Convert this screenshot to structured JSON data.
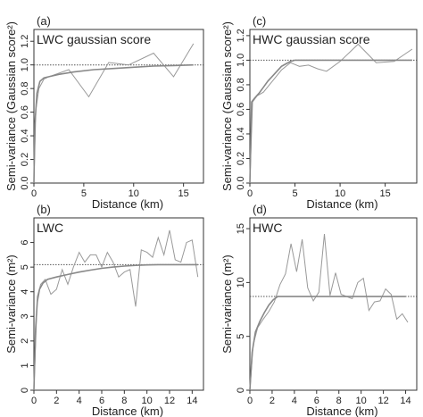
{
  "chart_data": [
    {
      "id": "a",
      "type": "line",
      "panel_label": "(a)",
      "title": "LWC gaussian score",
      "xlabel": "Distance (km)",
      "ylabel": "Semi-variance (Gaussian score²)",
      "xlim": [
        0,
        17
      ],
      "ylim": [
        0,
        1.3
      ],
      "xticks": [
        0,
        5,
        10,
        15
      ],
      "yticks": [
        0.0,
        0.2,
        0.4,
        0.6,
        0.8,
        1.0,
        1.2
      ],
      "ytick_labels": [
        "0.0",
        "0.2",
        "0.4",
        "0.6",
        "0.8",
        "1.0",
        "1.2"
      ],
      "sill": 1.0,
      "series": [
        {
          "kind": "empirical",
          "x": [
            0,
            0.2,
            0.5,
            1.0,
            1.5,
            3.5,
            5.5,
            7.5,
            9.5,
            12,
            14,
            16
          ],
          "y": [
            0,
            0.62,
            0.8,
            0.88,
            0.9,
            0.96,
            0.73,
            1.02,
            1.0,
            1.1,
            0.9,
            1.18
          ]
        },
        {
          "kind": "model",
          "x": [
            0,
            0.1,
            0.3,
            0.6,
            1.0,
            1.5,
            2.5,
            4,
            6,
            8,
            10,
            12,
            14,
            16
          ],
          "y": [
            0,
            0.5,
            0.76,
            0.86,
            0.89,
            0.9,
            0.92,
            0.94,
            0.96,
            0.97,
            0.98,
            0.99,
            0.995,
            1.0
          ]
        }
      ]
    },
    {
      "id": "b",
      "type": "line",
      "panel_label": "(b)",
      "title": "LWC",
      "xlabel": "Distance (km)",
      "ylabel": "Semi-variance (m²)",
      "xlim": [
        0,
        15
      ],
      "ylim": [
        0,
        7
      ],
      "xticks": [
        0,
        2,
        4,
        6,
        8,
        10,
        12,
        14
      ],
      "yticks": [
        0,
        1,
        2,
        3,
        4,
        5,
        6
      ],
      "ytick_labels": [
        "0",
        "1",
        "2",
        "3",
        "4",
        "5",
        "6"
      ],
      "sill": 5.1,
      "series": [
        {
          "kind": "empirical",
          "x": [
            0,
            0.3,
            0.6,
            1.0,
            1.5,
            2.0,
            2.5,
            3.0,
            3.5,
            4.0,
            4.5,
            5.0,
            5.5,
            6.0,
            6.5,
            7.0,
            7.5,
            8.0,
            8.5,
            9.0,
            9.5,
            10.0,
            10.5,
            11.0,
            11.5,
            12.0,
            12.5,
            13.0,
            13.5,
            14.0,
            14.5
          ],
          "y": [
            0,
            3.8,
            4.3,
            4.5,
            3.9,
            4.1,
            4.9,
            4.3,
            5.0,
            5.6,
            5.2,
            5.5,
            5.5,
            5.0,
            5.6,
            5.2,
            4.6,
            4.8,
            4.9,
            3.4,
            5.7,
            5.6,
            5.4,
            6.2,
            5.5,
            6.5,
            5.3,
            5.2,
            6.0,
            6.1,
            4.6
          ]
        },
        {
          "kind": "model",
          "x": [
            0,
            0.15,
            0.3,
            0.5,
            0.8,
            1.2,
            2,
            3,
            4,
            5,
            6,
            7,
            8,
            9,
            10,
            11,
            12,
            13,
            14,
            14.5
          ],
          "y": [
            0,
            2.5,
            3.6,
            4.1,
            4.35,
            4.5,
            4.6,
            4.7,
            4.8,
            4.88,
            4.95,
            5.0,
            5.04,
            5.07,
            5.09,
            5.1,
            5.1,
            5.1,
            5.1,
            5.1
          ]
        }
      ]
    },
    {
      "id": "c",
      "type": "line",
      "panel_label": "(c)",
      "title": "HWC gaussian score",
      "xlabel": "Distance (km)",
      "ylabel": "Semi-variance (Gaussian score²)",
      "xlim": [
        0,
        18.5
      ],
      "ylim": [
        0,
        1.25
      ],
      "xticks": [
        0,
        5,
        10,
        15
      ],
      "yticks": [
        0.0,
        0.2,
        0.4,
        0.6,
        0.8,
        1.0,
        1.2
      ],
      "ytick_labels": [
        "0.0",
        "0.2",
        "0.4",
        "0.6",
        "0.8",
        "1.0",
        "1.2"
      ],
      "sill": 1.0,
      "series": [
        {
          "kind": "empirical",
          "x": [
            0,
            0.3,
            0.8,
            1.5,
            2.5,
            3.5,
            4.5,
            5.5,
            6.5,
            7.5,
            8.5,
            10,
            12,
            14,
            16,
            18
          ],
          "y": [
            0,
            0.66,
            0.71,
            0.74,
            0.83,
            0.92,
            0.98,
            0.95,
            0.96,
            0.93,
            0.91,
            0.99,
            1.13,
            0.98,
            0.99,
            1.09
          ]
        },
        {
          "kind": "model",
          "x": [
            0,
            0.2,
            0.5,
            1,
            1.5,
            2,
            2.5,
            3,
            3.5,
            4,
            4.5,
            5,
            6,
            8,
            10,
            14,
            18
          ],
          "y": [
            0,
            0.66,
            0.69,
            0.73,
            0.78,
            0.83,
            0.87,
            0.91,
            0.95,
            0.97,
            0.99,
            1.0,
            1.0,
            1.0,
            1.0,
            1.0,
            1.0
          ]
        }
      ]
    },
    {
      "id": "d",
      "type": "line",
      "panel_label": "(d)",
      "title": "HWC",
      "xlabel": "Distance (km)",
      "ylabel": "Semi-variance (m²)",
      "xlim": [
        0,
        15
      ],
      "ylim": [
        0,
        16
      ],
      "xticks": [
        0,
        2,
        4,
        6,
        8,
        10,
        12,
        14
      ],
      "yticks": [
        0,
        5,
        10,
        15
      ],
      "ytick_labels": [
        "0",
        "5",
        "10",
        "15"
      ],
      "sill": 8.7,
      "series": [
        {
          "kind": "empirical",
          "x": [
            0,
            0.3,
            0.7,
            1.2,
            1.7,
            2.2,
            2.7,
            3.2,
            3.7,
            4.2,
            4.7,
            5.2,
            5.7,
            6.2,
            6.7,
            7.2,
            7.7,
            8.2,
            8.7,
            9.2,
            9.7,
            10.2,
            10.7,
            11.2,
            11.7,
            12.2,
            12.7,
            13.2,
            13.7,
            14.2
          ],
          "y": [
            0,
            4.2,
            5.8,
            6.6,
            7.3,
            8.2,
            9.8,
            10.8,
            13.6,
            11.0,
            14.0,
            9.5,
            8.3,
            9.1,
            14.5,
            8.8,
            10.9,
            8.9,
            8.7,
            8.5,
            10.0,
            10.4,
            7.4,
            8.2,
            8.3,
            9.4,
            8.9,
            6.6,
            7.1,
            6.3
          ]
        },
        {
          "kind": "model",
          "x": [
            0,
            0.2,
            0.5,
            0.9,
            1.3,
            1.7,
            2.1,
            2.5,
            3,
            4,
            6,
            8,
            10,
            12,
            14
          ],
          "y": [
            0,
            3.5,
            5.4,
            6.4,
            7.2,
            7.9,
            8.4,
            8.7,
            8.7,
            8.7,
            8.7,
            8.7,
            8.7,
            8.7,
            8.7
          ]
        }
      ]
    }
  ]
}
